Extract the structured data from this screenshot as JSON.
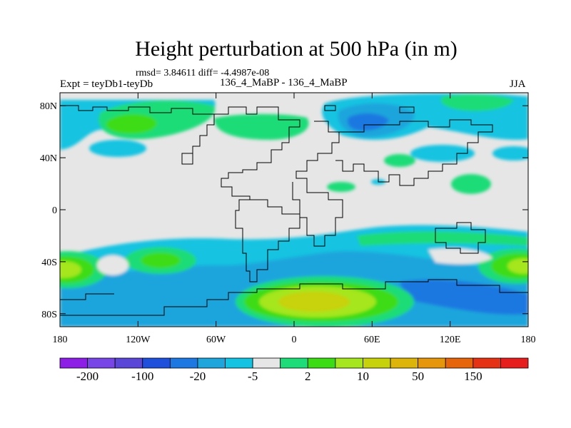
{
  "title": "Height perturbation at 500 hPa (in m)",
  "stats_line": "rmsd= 3.84611 diff= -4.4987e-08",
  "experiment_label": "Expt = teyDb1-teyDb",
  "subtitle": "136_4_MaBP - 136_4_MaBP",
  "season": "JJA",
  "axes": {
    "lat_ticks": [
      {
        "value": 80,
        "label": "80N"
      },
      {
        "value": 40,
        "label": "40N"
      },
      {
        "value": 0,
        "label": "0"
      },
      {
        "value": -40,
        "label": "40S"
      },
      {
        "value": -80,
        "label": "80S"
      }
    ],
    "lon_ticks": [
      {
        "value": -180,
        "label": "180"
      },
      {
        "value": -120,
        "label": "120W"
      },
      {
        "value": -60,
        "label": "60W"
      },
      {
        "value": 0,
        "label": "0"
      },
      {
        "value": 60,
        "label": "60E"
      },
      {
        "value": 120,
        "label": "120E"
      },
      {
        "value": 180,
        "label": "180"
      }
    ],
    "lon_range": [
      -180,
      180
    ],
    "lat_range": [
      -90,
      90
    ]
  },
  "colorbar": {
    "colors": [
      "#8c1ee6",
      "#7846e6",
      "#5a46d7",
      "#1e50dc",
      "#1e78e1",
      "#1ea5dc",
      "#14c3e1",
      "#e6e6e6",
      "#1edc78",
      "#3cdc14",
      "#a5e61e",
      "#c8d20a",
      "#dcb40a",
      "#e6960a",
      "#e6640a",
      "#e63214",
      "#e61e1e"
    ],
    "labels": [
      "-200",
      "-100",
      "-20",
      "-5",
      "2",
      "10",
      "50",
      "150"
    ]
  },
  "chart_data": {
    "type": "filled-contour-map",
    "variable": "500 hPa height perturbation",
    "units": "m",
    "features": [
      {
        "name": "Southern Ocean negative band",
        "lon_range": [
          -180,
          180
        ],
        "lat_range": [
          -75,
          -30
        ],
        "approx_value": -10
      },
      {
        "name": "Positive anomaly south of Africa",
        "lon_center": 20,
        "lat_center": -70,
        "approx_value": 20
      },
      {
        "name": "Positive anomaly South Pacific",
        "lon_center": -170,
        "lat_center": -45,
        "approx_value": 10
      },
      {
        "name": "Positive anomaly SE Pacific",
        "lon_center": -100,
        "lat_center": -40,
        "approx_value": 5
      },
      {
        "name": "Positive anomaly South Indian Ocean",
        "lon_center": 170,
        "lat_center": -45,
        "approx_value": 10
      },
      {
        "name": "Negative anomaly N Pacific",
        "lon_center": -150,
        "lat_center": 75,
        "approx_value": -5
      },
      {
        "name": "Negative anomaly Arctic/Eurasia",
        "lon_center": 60,
        "lat_center": 70,
        "approx_value": -10
      },
      {
        "name": "Positive anomaly Siberia",
        "lon_center": 160,
        "lat_center": 80,
        "approx_value": 2
      }
    ]
  }
}
